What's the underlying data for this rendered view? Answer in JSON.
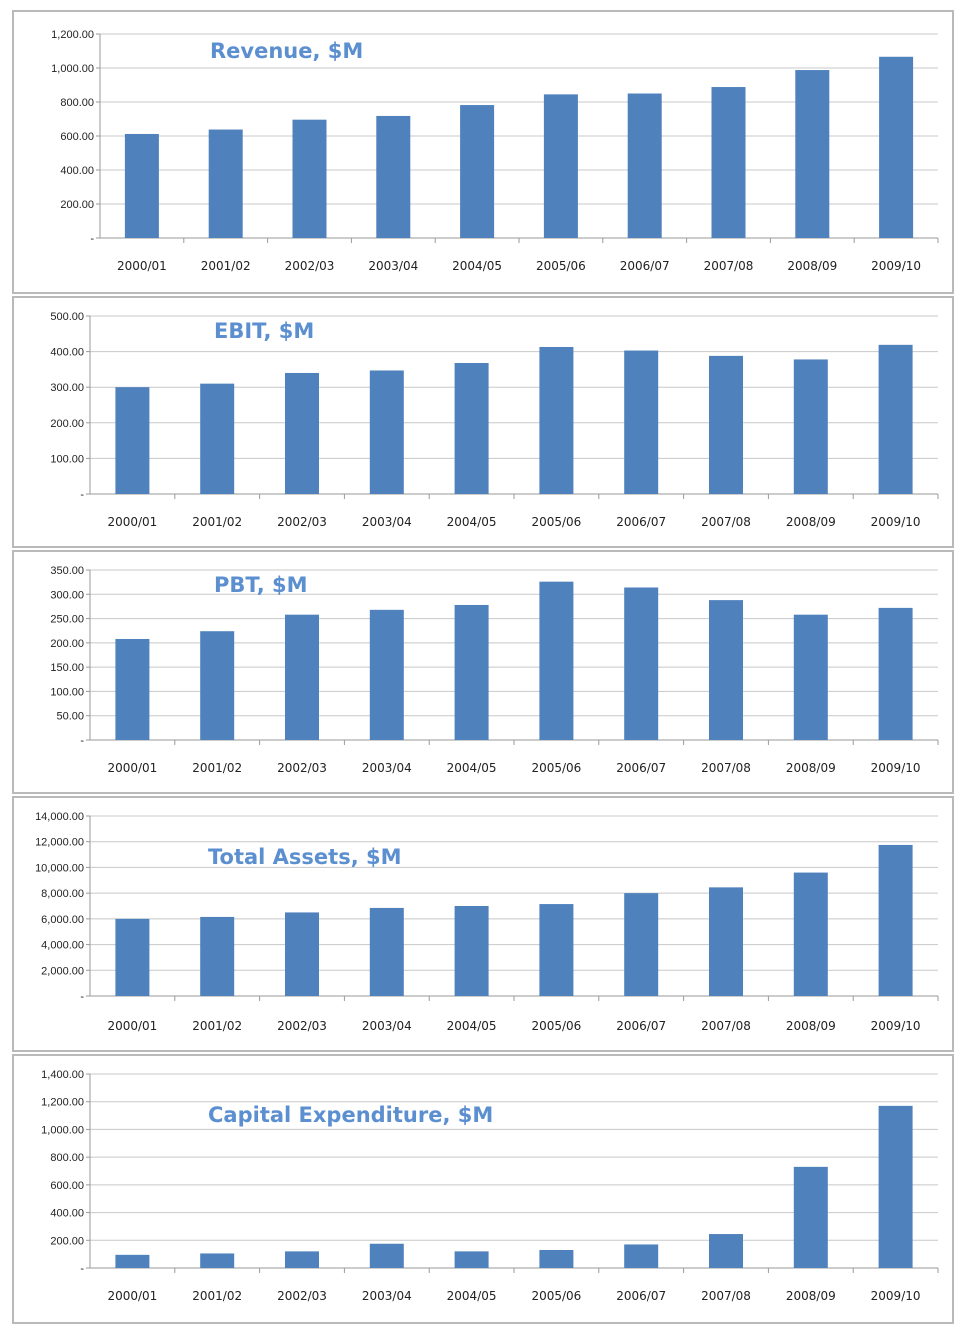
{
  "colors": {
    "bar": "#4f81bd",
    "title": "#5b8fd0",
    "grid": "#c8c8c8",
    "border": "#b9b9b9"
  },
  "chart_data": [
    {
      "type": "bar",
      "title": "Revenue, $M",
      "categories": [
        "2000/01",
        "2001/02",
        "2002/03",
        "2003/04",
        "2004/05",
        "2005/06",
        "2006/07",
        "2007/08",
        "2008/09",
        "2009/10"
      ],
      "values": [
        612,
        638,
        696,
        718,
        782,
        845,
        850,
        888,
        988,
        1066
      ],
      "ylim": [
        0,
        1200
      ],
      "yticks": [
        "-",
        "200.00",
        "400.00",
        "600.00",
        "800.00",
        "1,000.00",
        "1,200.00"
      ],
      "grid": true
    },
    {
      "type": "bar",
      "title": "EBIT, $M",
      "categories": [
        "2000/01",
        "2001/02",
        "2002/03",
        "2003/04",
        "2004/05",
        "2005/06",
        "2006/07",
        "2007/08",
        "2008/09",
        "2009/10"
      ],
      "values": [
        300,
        310,
        340,
        347,
        368,
        413,
        403,
        388,
        378,
        419
      ],
      "ylim": [
        0,
        500
      ],
      "yticks": [
        "-",
        "100.00",
        "200.00",
        "300.00",
        "400.00",
        "500.00"
      ],
      "grid": true
    },
    {
      "type": "bar",
      "title": "PBT, $M",
      "categories": [
        "2000/01",
        "2001/02",
        "2002/03",
        "2003/04",
        "2004/05",
        "2005/06",
        "2006/07",
        "2007/08",
        "2008/09",
        "2009/10"
      ],
      "values": [
        208,
        224,
        258,
        268,
        278,
        326,
        314,
        288,
        258,
        272
      ],
      "ylim": [
        0,
        350
      ],
      "yticks": [
        "-",
        "50.00",
        "100.00",
        "150.00",
        "200.00",
        "250.00",
        "300.00",
        "350.00"
      ],
      "grid": true
    },
    {
      "type": "bar",
      "title": "Total Assets, $M",
      "categories": [
        "2000/01",
        "2001/02",
        "2002/03",
        "2003/04",
        "2004/05",
        "2005/06",
        "2006/07",
        "2007/08",
        "2008/09",
        "2009/10"
      ],
      "values": [
        6000,
        6150,
        6500,
        6850,
        7000,
        7150,
        8000,
        8450,
        9600,
        11750
      ],
      "ylim": [
        0,
        14000
      ],
      "yticks": [
        "-",
        "2,000.00",
        "4,000.00",
        "6,000.00",
        "8,000.00",
        "10,000.00",
        "12,000.00",
        "14,000.00"
      ],
      "grid": true
    },
    {
      "type": "bar",
      "title": "Capital Expenditure, $M",
      "categories": [
        "2000/01",
        "2001/02",
        "2002/03",
        "2003/04",
        "2004/05",
        "2005/06",
        "2006/07",
        "2007/08",
        "2008/09",
        "2009/10"
      ],
      "values": [
        95,
        105,
        120,
        175,
        120,
        130,
        170,
        245,
        730,
        1170
      ],
      "ylim": [
        0,
        1400
      ],
      "yticks": [
        "-",
        "200.00",
        "400.00",
        "600.00",
        "800.00",
        "1,000.00",
        "1,200.00",
        "1,400.00"
      ],
      "grid": true
    }
  ]
}
